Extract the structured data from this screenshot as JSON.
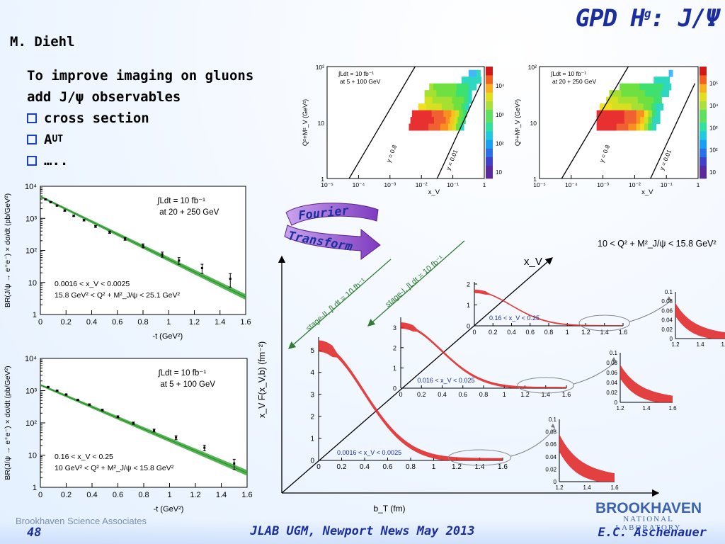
{
  "slide": {
    "title": "GPD H",
    "title_sup": "g",
    "title_suffix": ": J/Ψ",
    "author": "M. Diehl",
    "bullets": [
      {
        "text": "To improve imaging on gluons"
      },
      {
        "text": "add J/ψ observables"
      },
      {
        "text": "cross section",
        "box": true
      },
      {
        "text": "A",
        "sub": "UT",
        "box": true
      },
      {
        "text": "…..",
        "box": true
      }
    ],
    "footer_org": "Brookhaven Science Associates",
    "footer_page": "48",
    "footer_conf": "JLAB UGM, Newport News May 2013",
    "footer_presenter": "E.C. Aschenauer",
    "logo_name": "BROOKHAVEN",
    "logo_sub": "NATIONAL LABORATORY",
    "fourier_1": "Fourier",
    "fourier_2": "Transform",
    "colors": {
      "title": "#1a2e9e",
      "bullet_box": "#1d3fc4",
      "band_green": "#34a834",
      "curve_red": "#e02020",
      "arrow_green": "#2e7d32",
      "arrow_purple": "#8a3fc0"
    }
  },
  "chart_data": [
    {
      "type": "scatter",
      "id": "xsec-20-250",
      "ylabel": "BR(J/ψ → e⁺e⁻) × dσ/dt (pb/GeV²)",
      "xlabel": "-t (GeV²)",
      "xlim": [
        0,
        1.6
      ],
      "ylim": [
        1,
        10000
      ],
      "yscale": "log",
      "xticks": [
        0,
        0.2,
        0.4,
        0.6,
        0.8,
        1,
        1.2,
        1.4,
        1.6
      ],
      "xticklabels": [
        "0",
        "0.2",
        "0.4",
        "0.6",
        "0.8",
        "1",
        "1.2",
        "1.4",
        "1.6"
      ],
      "yticks": [
        1,
        10,
        100,
        1000,
        10000
      ],
      "yticklabels": [
        "1",
        "10",
        "10²",
        "10³",
        "10⁴"
      ],
      "lumi_1": "∫Ldt = 10 fb⁻¹",
      "lumi_2": "at 20 + 250 GeV",
      "cut_1": "0.0016 < x_V < 0.0025",
      "cut_2": "15.8 GeV² < Q² + M²_J/ψ < 25.1 GeV²",
      "points": [
        [
          0.04,
          3900
        ],
        [
          0.08,
          3200
        ],
        [
          0.13,
          2500
        ],
        [
          0.19,
          1750
        ],
        [
          0.26,
          1200
        ],
        [
          0.34,
          880
        ],
        [
          0.43,
          560
        ],
        [
          0.54,
          370
        ],
        [
          0.66,
          230
        ],
        [
          0.8,
          140
        ],
        [
          0.95,
          75
        ],
        [
          1.08,
          48
        ],
        [
          1.26,
          28
        ],
        [
          1.48,
          13
        ]
      ],
      "yerr_frac": [
        0.04,
        0.04,
        0.04,
        0.05,
        0.05,
        0.06,
        0.07,
        0.08,
        0.1,
        0.14,
        0.18,
        0.24,
        0.32,
        0.45
      ],
      "fit": {
        "x": [
          0,
          1.6
        ],
        "y": [
          4800,
          3.5
        ]
      }
    },
    {
      "type": "scatter",
      "id": "xsec-5-100",
      "ylabel": "BR(J/ψ → e⁺e⁻) × dσ/dt (pb/GeV²)",
      "xlabel": "-t (GeV²)",
      "xlim": [
        0,
        1.6
      ],
      "ylim": [
        1,
        10000
      ],
      "yscale": "log",
      "xticks": [
        0,
        0.2,
        0.4,
        0.6,
        0.8,
        1,
        1.2,
        1.4,
        1.6
      ],
      "xticklabels": [
        "0",
        "0.2",
        "0.4",
        "0.6",
        "0.8",
        "1",
        "1.2",
        "1.4",
        "1.6"
      ],
      "yticks": [
        1,
        10,
        100,
        1000,
        10000
      ],
      "yticklabels": [
        "1",
        "10",
        "10²",
        "10³",
        "10⁴"
      ],
      "lumi_1": "∫Ldt = 10 fb⁻¹",
      "lumi_2": "at 5 + 100 GeV",
      "cut_1": "0.16 < x_V < 0.25",
      "cut_2": "10 GeV² < Q² + M²_J/ψ < 15.8 GeV²",
      "points": [
        [
          0.06,
          1300
        ],
        [
          0.13,
          1000
        ],
        [
          0.2,
          760
        ],
        [
          0.29,
          520
        ],
        [
          0.38,
          370
        ],
        [
          0.48,
          250
        ],
        [
          0.6,
          155
        ],
        [
          0.72,
          98
        ],
        [
          0.88,
          58
        ],
        [
          1.05,
          35
        ],
        [
          1.27,
          17
        ],
        [
          1.5,
          5.5
        ]
      ],
      "yerr_frac": [
        0.03,
        0.04,
        0.04,
        0.05,
        0.05,
        0.06,
        0.07,
        0.08,
        0.1,
        0.14,
        0.2,
        0.35
      ],
      "fit": {
        "x": [
          0,
          1.6
        ],
        "y": [
          1500,
          2.8
        ]
      }
    },
    {
      "type": "heatmap",
      "id": "kin-5-100",
      "xlabel": "x_V",
      "ylabel": "Q²+M²_V (GeV²)",
      "xscale": "log",
      "yscale": "log",
      "xlim": [
        1e-05,
        1
      ],
      "ylim": [
        1,
        100
      ],
      "xticklabels": [
        "10⁻⁵",
        "10⁻⁴",
        "10⁻³",
        "10⁻²",
        "10⁻¹",
        "1"
      ],
      "yticklabels": [
        "1",
        "10",
        "10²"
      ],
      "zticklabels": [
        "10",
        "10²",
        "10³",
        "10⁴"
      ],
      "lumi_1": "∫Ldt = 10 fb⁻¹",
      "lumi_2": "at 5 + 100 GeV",
      "line_labels": [
        "y = 0.8",
        "y = 0.01"
      ]
    },
    {
      "type": "heatmap",
      "id": "kin-20-250",
      "xlabel": "x_V",
      "ylabel": "Q²+M²_V (GeV²)",
      "xscale": "log",
      "yscale": "log",
      "xlim": [
        1e-05,
        1
      ],
      "ylim": [
        1,
        100
      ],
      "xticklabels": [
        "10⁻⁵",
        "10⁻⁴",
        "10⁻³",
        "10⁻²",
        "10⁻¹",
        "1"
      ],
      "yticklabels": [
        "1",
        "10",
        "10²"
      ],
      "zticklabels": [
        "10",
        "10²",
        "10³",
        "10⁴",
        "10⁵"
      ],
      "lumi_1": "∫Ldt = 10 fb⁻¹",
      "lumi_2": "at 20 + 250 GeV",
      "line_labels": [
        "y = 0.8",
        "y = 0.01"
      ]
    },
    {
      "type": "line",
      "id": "gluon-profile-3d",
      "title": "10 < Q² + M²_J/ψ < 15.8 GeV²",
      "ylabel": "x_V F(x_V,b) (fm⁻²)",
      "xlabel": "b_T (fm)",
      "depth_label": "x_V",
      "stage_2_label": "stage-II, ∫Ldt = 10 fb⁻¹",
      "stage_1_label": "stage-I, ∫Ldt = 10 fb⁻¹",
      "panels": [
        {
          "name": "0.0016 < x_V < 0.0025",
          "peak": 5.2,
          "yticks": [
            "0",
            "1",
            "2",
            "3",
            "4",
            "5"
          ]
        },
        {
          "name": "0.016 < x_V < 0.025",
          "peak": 3.1,
          "yticks": [
            "0",
            "1",
            "2",
            "3"
          ]
        },
        {
          "name": "0.16 < x_V < 0.25",
          "peak": 1.65,
          "yticks": [
            "0",
            "1",
            "2"
          ]
        }
      ],
      "xticklabels": [
        "0",
        "0.2",
        "0.4",
        "0.6",
        "0.8",
        "1",
        "1.2",
        "1.4",
        "1.6"
      ],
      "zoom_xticklabels": [
        "1.2",
        "1.4",
        "1.6"
      ],
      "zoom_yticklabels": [
        "0",
        "0.02",
        "0.04",
        "0.06",
        "0.08",
        "0.1"
      ]
    }
  ]
}
